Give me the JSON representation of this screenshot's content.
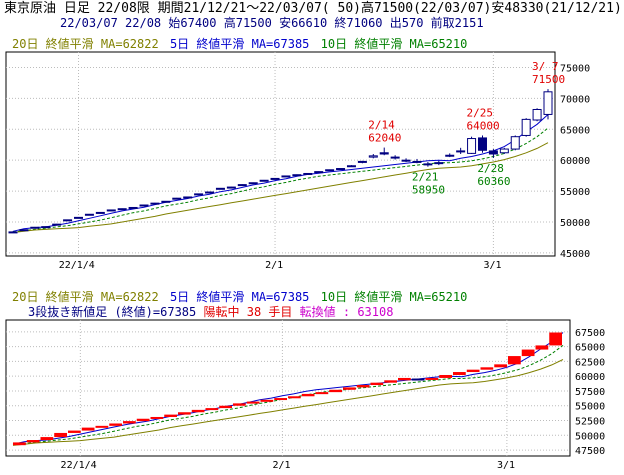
{
  "header": {
    "line1": "東京原油 日足 22/08限 期間21/12/21～22/03/07( 50)高71500(22/03/07)安48330(21/12/21)",
    "line2": "22/03/07 22/08 始67400 高71500 安66610 終71060 出570 前取2151"
  },
  "legend": {
    "ma20": "20日 終値平滑 MA=62822",
    "ma5": "5日 終値平滑 MA=67385",
    "ma10": "10日 終値平滑 MA=65210"
  },
  "renko_info": {
    "label": "3段抜き新値足 (終値)=67385",
    "status": "陽転中",
    "count": "38 手目",
    "reversal": "転換値 : 63108"
  },
  "colors": {
    "ma20": "#808000",
    "ma5": "#0000cc",
    "ma10": "#008000",
    "candle_up": "#000080",
    "renko_up": "#ff0000",
    "renko_down": "#000080",
    "annotation_high": "#e00000",
    "annotation_low": "#008000"
  },
  "chart_data": [
    {
      "type": "candlestick",
      "title": "東京原油 日足 22/08限",
      "x_tick_labels": [
        "22/1/4",
        "2/1",
        "3/1"
      ],
      "y_ticks": [
        45000,
        50000,
        55000,
        60000,
        65000,
        70000,
        75000
      ],
      "ylim": [
        44500,
        77500
      ],
      "grid": true,
      "series": [
        {
          "name": "5日 終値平滑",
          "values": [
            48500,
            48900,
            49100,
            49200,
            49500,
            49800,
            50200,
            50600,
            51000,
            51400,
            51800,
            52100,
            52400,
            52800,
            53200,
            53500,
            53800,
            54200,
            54500,
            54900,
            55200,
            55600,
            56000,
            56300,
            56700,
            57000,
            57400,
            57700,
            57900,
            58100,
            58300,
            58500,
            58700,
            58900,
            59100,
            59300,
            59500,
            59700,
            59900,
            60000,
            59900,
            60300,
            60600,
            61000,
            61500,
            62200,
            63300,
            64600,
            65800,
            67385
          ]
        },
        {
          "name": "10日 終値平滑",
          "values": [
            48400,
            48600,
            48800,
            49000,
            49200,
            49400,
            49700,
            50000,
            50300,
            50700,
            51100,
            51500,
            51800,
            52200,
            52600,
            52900,
            53200,
            53600,
            53900,
            54300,
            54600,
            55000,
            55400,
            55700,
            56100,
            56400,
            56800,
            57100,
            57400,
            57600,
            57800,
            58000,
            58200,
            58400,
            58600,
            58800,
            59000,
            59200,
            59400,
            59600,
            59600,
            59700,
            59900,
            60200,
            60600,
            61100,
            61800,
            62700,
            63800,
            65210
          ]
        },
        {
          "name": "20日 終値平滑",
          "values": [
            48300,
            48500,
            48700,
            48800,
            48900,
            49000,
            49100,
            49300,
            49500,
            49700,
            50000,
            50300,
            50600,
            50900,
            51300,
            51600,
            51900,
            52200,
            52500,
            52800,
            53100,
            53400,
            53700,
            54000,
            54300,
            54600,
            54900,
            55200,
            55500,
            55800,
            56100,
            56400,
            56700,
            57000,
            57300,
            57600,
            57900,
            58200,
            58500,
            58700,
            58800,
            58900,
            59100,
            59400,
            59700,
            60100,
            60600,
            61200,
            61900,
            62822
          ]
        }
      ],
      "candles": [
        {
          "o": 48330,
          "h": 48500,
          "l": 48330,
          "c": 48400
        },
        {
          "o": 48700,
          "h": 48800,
          "l": 48700,
          "c": 48750
        },
        {
          "o": 49100,
          "h": 49200,
          "l": 49000,
          "c": 49150
        },
        {
          "o": 49200,
          "h": 49300,
          "l": 49100,
          "c": 49250
        },
        {
          "o": 49600,
          "h": 49700,
          "l": 49500,
          "c": 49650
        },
        {
          "o": 50300,
          "h": 50400,
          "l": 50200,
          "c": 50350
        },
        {
          "o": 50700,
          "h": 50800,
          "l": 50600,
          "c": 50750
        },
        {
          "o": 51200,
          "h": 51300,
          "l": 51100,
          "c": 51250
        },
        {
          "o": 51500,
          "h": 51600,
          "l": 51400,
          "c": 51550
        },
        {
          "o": 51900,
          "h": 52000,
          "l": 51800,
          "c": 51950
        },
        {
          "o": 52100,
          "h": 52200,
          "l": 52000,
          "c": 52150
        },
        {
          "o": 52300,
          "h": 52400,
          "l": 52200,
          "c": 52350
        },
        {
          "o": 52700,
          "h": 52800,
          "l": 52600,
          "c": 52750
        },
        {
          "o": 53000,
          "h": 53100,
          "l": 52900,
          "c": 53050
        },
        {
          "o": 53300,
          "h": 53400,
          "l": 53200,
          "c": 53350
        },
        {
          "o": 53800,
          "h": 53900,
          "l": 53700,
          "c": 53850
        },
        {
          "o": 54000,
          "h": 54100,
          "l": 53900,
          "c": 54050
        },
        {
          "o": 54500,
          "h": 54600,
          "l": 54400,
          "c": 54550
        },
        {
          "o": 54800,
          "h": 54900,
          "l": 54700,
          "c": 54850
        },
        {
          "o": 55400,
          "h": 55500,
          "l": 55300,
          "c": 55450
        },
        {
          "o": 55600,
          "h": 55700,
          "l": 55500,
          "c": 55650
        },
        {
          "o": 56000,
          "h": 56100,
          "l": 55900,
          "c": 56050
        },
        {
          "o": 56300,
          "h": 56400,
          "l": 56200,
          "c": 56350
        },
        {
          "o": 56700,
          "h": 56800,
          "l": 56600,
          "c": 56750
        },
        {
          "o": 57000,
          "h": 57100,
          "l": 56900,
          "c": 57050
        },
        {
          "o": 57400,
          "h": 57500,
          "l": 57300,
          "c": 57450
        },
        {
          "o": 57600,
          "h": 57700,
          "l": 57500,
          "c": 57650
        },
        {
          "o": 57800,
          "h": 57900,
          "l": 57700,
          "c": 57850
        },
        {
          "o": 58100,
          "h": 58200,
          "l": 58000,
          "c": 58150
        },
        {
          "o": 58400,
          "h": 58500,
          "l": 58300,
          "c": 58450
        },
        {
          "o": 58600,
          "h": 58700,
          "l": 58500,
          "c": 58650
        },
        {
          "o": 59000,
          "h": 59200,
          "l": 58900,
          "c": 59100
        },
        {
          "o": 59700,
          "h": 59900,
          "l": 59500,
          "c": 59800
        },
        {
          "o": 60500,
          "h": 61000,
          "l": 60300,
          "c": 60700
        },
        {
          "o": 61200,
          "h": 62040,
          "l": 60800,
          "c": 61000
        },
        {
          "o": 60400,
          "h": 60800,
          "l": 60100,
          "c": 60500
        },
        {
          "o": 60000,
          "h": 60300,
          "l": 59700,
          "c": 59900
        },
        {
          "o": 59800,
          "h": 60200,
          "l": 59500,
          "c": 59700
        },
        {
          "o": 59400,
          "h": 59700,
          "l": 58950,
          "c": 59300
        },
        {
          "o": 59500,
          "h": 59900,
          "l": 59200,
          "c": 59600
        },
        {
          "o": 60700,
          "h": 61100,
          "l": 60500,
          "c": 60800
        },
        {
          "o": 61400,
          "h": 62000,
          "l": 61000,
          "c": 61500
        },
        {
          "o": 61100,
          "h": 63800,
          "l": 61000,
          "c": 63500
        },
        {
          "o": 63600,
          "h": 64000,
          "l": 61200,
          "c": 61600
        },
        {
          "o": 61500,
          "h": 61800,
          "l": 60360,
          "c": 61000
        },
        {
          "o": 61200,
          "h": 62000,
          "l": 61000,
          "c": 61800
        },
        {
          "o": 61800,
          "h": 64000,
          "l": 61600,
          "c": 63800
        },
        {
          "o": 64000,
          "h": 66800,
          "l": 63800,
          "c": 66600
        },
        {
          "o": 66500,
          "h": 68400,
          "l": 66300,
          "c": 68200
        },
        {
          "o": 67400,
          "h": 71500,
          "l": 66610,
          "c": 71060
        }
      ],
      "annotations": [
        {
          "date": "2/14",
          "value": "62040",
          "kind": "high",
          "index": 34
        },
        {
          "date": "2/25",
          "value": "64000",
          "kind": "high",
          "index": 43
        },
        {
          "date": "3/ 7",
          "value": "71500",
          "kind": "high",
          "index": 49
        },
        {
          "date": "2/21",
          "value": "58950",
          "kind": "low",
          "index": 38
        },
        {
          "date": "2/28",
          "value": "60360",
          "kind": "low",
          "index": 44
        }
      ]
    },
    {
      "type": "renko",
      "title": "3段抜き新値足 (終値)",
      "x_tick_labels": [
        "22/1/4",
        "2/1",
        "3/1"
      ],
      "y_ticks": [
        47500,
        50000,
        52500,
        55000,
        57500,
        60000,
        62500,
        65000,
        67500
      ],
      "ylim": [
        46500,
        69500
      ],
      "grid": true,
      "series": [
        {
          "name": "5日 終値平滑",
          "values": [
            48500,
            48900,
            49100,
            49200,
            49500,
            49800,
            50200,
            50600,
            51000,
            51400,
            51800,
            52100,
            52400,
            52800,
            53200,
            53500,
            53800,
            54200,
            54500,
            54900,
            55200,
            55600,
            56000,
            56300,
            56700,
            57000,
            57400,
            57700,
            57900,
            58100,
            58300,
            58500,
            58700,
            58900,
            59100,
            59300,
            59500,
            59700,
            59900,
            60000,
            59900,
            60300,
            60600,
            61000,
            61500,
            62200,
            63300,
            64600,
            65800,
            67385
          ]
        },
        {
          "name": "10日 終値平滑",
          "values": [
            48400,
            48600,
            48800,
            49000,
            49200,
            49400,
            49700,
            50000,
            50300,
            50700,
            51100,
            51500,
            51800,
            52200,
            52600,
            52900,
            53200,
            53600,
            53900,
            54300,
            54600,
            55000,
            55400,
            55700,
            56100,
            56400,
            56800,
            57100,
            57400,
            57600,
            57800,
            58000,
            58200,
            58400,
            58600,
            58800,
            59000,
            59200,
            59400,
            59600,
            59600,
            59700,
            59900,
            60200,
            60600,
            61100,
            61800,
            62700,
            63800,
            65210
          ]
        },
        {
          "name": "20日 終値平滑",
          "values": [
            48300,
            48500,
            48700,
            48800,
            48900,
            49000,
            49100,
            49300,
            49500,
            49700,
            50000,
            50300,
            50600,
            50900,
            51300,
            51600,
            51900,
            52200,
            52500,
            52800,
            53100,
            53400,
            53700,
            54000,
            54300,
            54600,
            54900,
            55200,
            55500,
            55800,
            56100,
            56400,
            56700,
            57000,
            57300,
            57600,
            57900,
            58200,
            58500,
            58700,
            58800,
            58900,
            59100,
            59400,
            59700,
            60100,
            60600,
            61200,
            61900,
            62822
          ]
        }
      ],
      "bricks": [
        {
          "lo": 48330,
          "hi": 48800,
          "up": true
        },
        {
          "lo": 48800,
          "hi": 49200,
          "up": true
        },
        {
          "lo": 49200,
          "hi": 49700,
          "up": true
        },
        {
          "lo": 49700,
          "hi": 50400,
          "up": true
        },
        {
          "lo": 50400,
          "hi": 50800,
          "up": true
        },
        {
          "lo": 50800,
          "hi": 51300,
          "up": true
        },
        {
          "lo": 51300,
          "hi": 51600,
          "up": true
        },
        {
          "lo": 51600,
          "hi": 52000,
          "up": true
        },
        {
          "lo": 52000,
          "hi": 52400,
          "up": true
        },
        {
          "lo": 52400,
          "hi": 52800,
          "up": true
        },
        {
          "lo": 52800,
          "hi": 53100,
          "up": true
        },
        {
          "lo": 53100,
          "hi": 53500,
          "up": true
        },
        {
          "lo": 53500,
          "hi": 53900,
          "up": true
        },
        {
          "lo": 53900,
          "hi": 54300,
          "up": true
        },
        {
          "lo": 54300,
          "hi": 54600,
          "up": true
        },
        {
          "lo": 54600,
          "hi": 55000,
          "up": true
        },
        {
          "lo": 55000,
          "hi": 55400,
          "up": true
        },
        {
          "lo": 55400,
          "hi": 55700,
          "up": true
        },
        {
          "lo": 55700,
          "hi": 56000,
          "up": true
        },
        {
          "lo": 56000,
          "hi": 56300,
          "up": true
        },
        {
          "lo": 56300,
          "hi": 56600,
          "up": true
        },
        {
          "lo": 56600,
          "hi": 57000,
          "up": true
        },
        {
          "lo": 57000,
          "hi": 57300,
          "up": true
        },
        {
          "lo": 57300,
          "hi": 57700,
          "up": true
        },
        {
          "lo": 57700,
          "hi": 58100,
          "up": true
        },
        {
          "lo": 58100,
          "hi": 58500,
          "up": true
        },
        {
          "lo": 58500,
          "hi": 58900,
          "up": true
        },
        {
          "lo": 58900,
          "hi": 59300,
          "up": true
        },
        {
          "lo": 59300,
          "hi": 59700,
          "up": true
        },
        {
          "lo": 59400,
          "hi": 59600,
          "up": false
        },
        {
          "lo": 59400,
          "hi": 59700,
          "up": true
        },
        {
          "lo": 59700,
          "hi": 60200,
          "up": true
        },
        {
          "lo": 60200,
          "hi": 60700,
          "up": true
        },
        {
          "lo": 60700,
          "hi": 61100,
          "up": true
        },
        {
          "lo": 61100,
          "hi": 61500,
          "up": true
        },
        {
          "lo": 61500,
          "hi": 62000,
          "up": true
        },
        {
          "lo": 62000,
          "hi": 63400,
          "up": true
        },
        {
          "lo": 63400,
          "hi": 64500,
          "up": true
        },
        {
          "lo": 64500,
          "hi": 65200,
          "up": true
        },
        {
          "lo": 65200,
          "hi": 67385,
          "up": true
        }
      ]
    }
  ]
}
